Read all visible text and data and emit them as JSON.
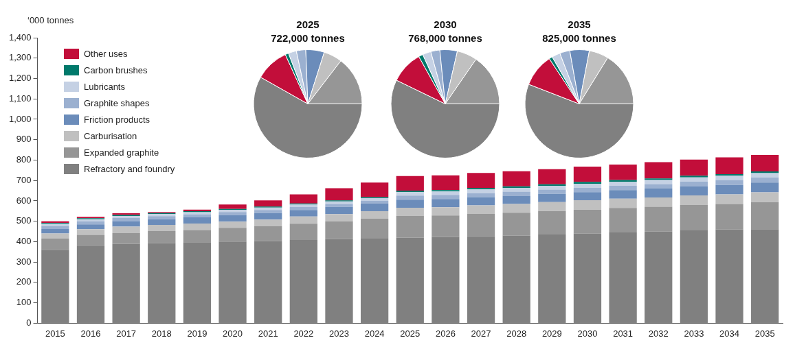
{
  "chart_data": [
    {
      "type": "bar",
      "ylabel": "‘000 tonnes",
      "stacked": true,
      "grid": false,
      "legend": "top left",
      "categories": [
        "2015",
        "2016",
        "2017",
        "2018",
        "2019",
        "2020",
        "2021",
        "2022",
        "2023",
        "2024",
        "2025",
        "2026",
        "2027",
        "2028",
        "2029",
        "2030",
        "2031",
        "2032",
        "2033",
        "2034",
        "2035"
      ],
      "ylim": [
        0,
        1400
      ],
      "yticks": [
        0,
        100,
        200,
        300,
        400,
        500,
        600,
        700,
        800,
        900,
        {
          "value": 1000,
          "label": "1,000"
        },
        {
          "value": 1100,
          "label": "1,100"
        },
        {
          "value": 1200,
          "label": "1,200"
        },
        {
          "value": 1300,
          "label": "1,300"
        },
        {
          "value": 1400,
          "label": "1,400"
        }
      ],
      "series": [
        {
          "name": "Refractory and foundry",
          "color": "#808080",
          "values": [
            360,
            378,
            390,
            392,
            397,
            401,
            403,
            408,
            412,
            415,
            420,
            423,
            426,
            430,
            435,
            439,
            445,
            449,
            455,
            460,
            461
          ]
        },
        {
          "name": "Expanded graphite",
          "color": "#969696",
          "values": [
            55,
            55,
            52,
            60,
            60,
            67,
            72,
            80,
            88,
            97,
            106,
            105,
            110,
            112,
            115,
            118,
            120,
            122,
            125,
            125,
            133
          ]
        },
        {
          "name": "Carburisation",
          "color": "#c0c0c0",
          "values": [
            25,
            28,
            32,
            30,
            32,
            30,
            33,
            35,
            35,
            37,
            40,
            41,
            42,
            43,
            44,
            46,
            46,
            46,
            47,
            47,
            48
          ]
        },
        {
          "name": "Friction products",
          "color": "#6b8cba",
          "values": [
            22,
            24,
            27,
            28,
            30,
            32,
            32,
            32,
            35,
            37,
            40,
            40,
            40,
            40,
            40,
            40,
            42,
            43,
            45,
            46,
            48
          ]
        },
        {
          "name": "Graphite shapes",
          "color": "#9bb0d0",
          "values": [
            15,
            15,
            15,
            15,
            15,
            15,
            15,
            15,
            15,
            15,
            20,
            20,
            20,
            20,
            21,
            21,
            21,
            22,
            23,
            24,
            25
          ]
        },
        {
          "name": "Lubricants",
          "color": "#c5d1e4",
          "values": [
            10,
            10,
            10,
            10,
            10,
            10,
            12,
            12,
            12,
            12,
            17,
            17,
            18,
            18,
            18,
            19,
            19,
            20,
            20,
            21,
            21
          ]
        },
        {
          "name": "Carbon brushes",
          "color": "#00796b",
          "values": [
            5,
            5,
            5,
            5,
            5,
            5,
            5,
            5,
            5,
            5,
            7,
            7,
            8,
            8,
            8,
            10,
            9,
            8,
            8,
            8,
            8
          ]
        },
        {
          "name": "Other uses",
          "color": "#c20e3a",
          "values": [
            8,
            7,
            8,
            5,
            8,
            22,
            30,
            45,
            60,
            72,
            72,
            72,
            73,
            74,
            74,
            75,
            76,
            80,
            79,
            82,
            81
          ]
        }
      ]
    },
    {
      "type": "pie",
      "title": "2025",
      "subtitle": "722,000 tonnes",
      "categories": [
        null,
        null,
        null,
        null,
        null,
        null,
        null,
        null
      ],
      "values": [
        58.2,
        10.0,
        1.0,
        2.4,
        2.8,
        5.5,
        5.5,
        14.6
      ],
      "colors": [
        "#808080",
        "#c20e3a",
        "#00796b",
        "#c5d1e4",
        "#9bb0d0",
        "#6b8cba",
        "#c0c0c0",
        "#969696"
      ]
    },
    {
      "type": "pie",
      "title": "2030",
      "subtitle": "768,000 tonnes",
      "categories": [
        null,
        null,
        null,
        null,
        null,
        null,
        null,
        null
      ],
      "values": [
        57.2,
        9.7,
        1.3,
        2.5,
        2.7,
        5.2,
        6.0,
        15.4
      ],
      "colors": [
        "#808080",
        "#c20e3a",
        "#00796b",
        "#c5d1e4",
        "#9bb0d0",
        "#6b8cba",
        "#c0c0c0",
        "#969696"
      ]
    },
    {
      "type": "pie",
      "title": "2035",
      "subtitle": "825,000 tonnes",
      "categories": [
        null,
        null,
        null,
        null,
        null,
        null,
        null,
        null
      ],
      "values": [
        55.9,
        9.8,
        1.0,
        2.5,
        3.0,
        5.8,
        5.8,
        16.2
      ],
      "colors": [
        "#808080",
        "#c20e3a",
        "#00796b",
        "#c5d1e4",
        "#9bb0d0",
        "#6b8cba",
        "#c0c0c0",
        "#969696"
      ]
    }
  ]
}
